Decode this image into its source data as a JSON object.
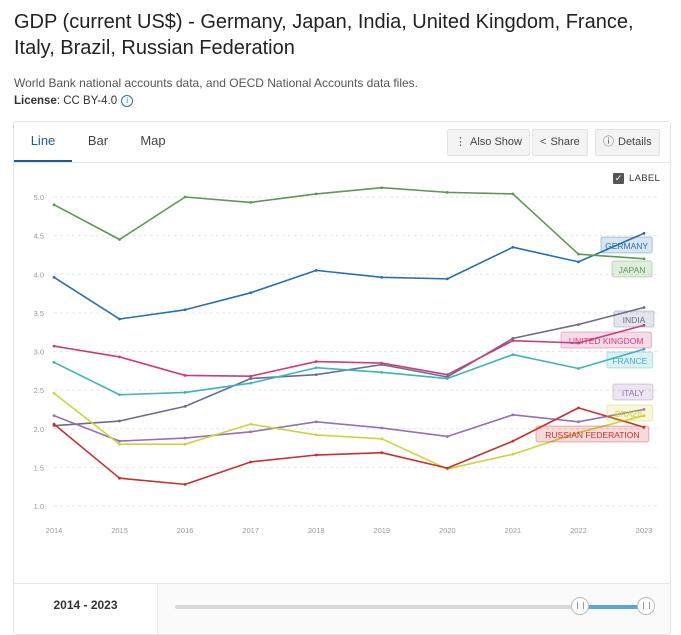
{
  "page": {
    "title": "GDP (current US$) - Germany, Japan, India, United Kingdom, France, Italy, Brazil, Russian Federation",
    "subtitle": "World Bank national accounts data, and OECD National Accounts data files.",
    "license_label": "License",
    "license_value": ": CC BY-4.0"
  },
  "tabs": [
    {
      "label": "Line"
    },
    {
      "label": "Bar"
    },
    {
      "label": "Map"
    }
  ],
  "toolbar": {
    "also_show": "Also Show",
    "share": "Share",
    "details": "Details",
    "label_toggle": "LABEL"
  },
  "range": {
    "label": "2014 - 2023",
    "start": 2014,
    "end": 2023
  },
  "colors": {
    "accent": "#1b5c96",
    "GERMANY": "#2a6fad",
    "JAPAN": "#5b9a4e",
    "INDIA": "#6b6d8e",
    "UNITED KINGDOM": "#cd3c7c",
    "FRANCE": "#3fb2bf",
    "ITALY": "#9470b8",
    "BRAZIL": "#cfd23a",
    "RUSSIAN FEDERATION": "#c8302e"
  },
  "chart_data": {
    "type": "line",
    "title": "",
    "xlabel": "",
    "ylabel": "",
    "x": [
      2014,
      2015,
      2016,
      2017,
      2018,
      2019,
      2020,
      2021,
      2022,
      2023
    ],
    "yticks": [
      "1.0",
      "1.5",
      "2.0",
      "2.5",
      "3.0",
      "3.5",
      "4.0",
      "4.5",
      "5.0"
    ],
    "ylim": [
      1.0,
      5.0
    ],
    "grid": true,
    "series": [
      {
        "name": "GERMANY",
        "values": [
          3.96,
          3.42,
          3.54,
          3.76,
          4.05,
          3.96,
          3.94,
          4.35,
          4.16,
          4.53
        ]
      },
      {
        "name": "JAPAN",
        "values": [
          4.9,
          4.45,
          5.0,
          4.93,
          5.04,
          5.12,
          5.06,
          5.04,
          4.26,
          4.2
        ]
      },
      {
        "name": "INDIA",
        "values": [
          2.04,
          2.1,
          2.29,
          2.65,
          2.7,
          2.83,
          2.67,
          3.17,
          3.35,
          3.57
        ]
      },
      {
        "name": "UNITED KINGDOM",
        "values": [
          3.07,
          2.93,
          2.69,
          2.68,
          2.87,
          2.85,
          2.7,
          3.14,
          3.11,
          3.34
        ]
      },
      {
        "name": "FRANCE",
        "values": [
          2.86,
          2.44,
          2.47,
          2.59,
          2.79,
          2.73,
          2.65,
          2.96,
          2.78,
          3.03
        ]
      },
      {
        "name": "ITALY",
        "values": [
          2.17,
          1.84,
          1.88,
          1.96,
          2.09,
          2.01,
          1.9,
          2.18,
          2.09,
          2.25
        ]
      },
      {
        "name": "BRAZIL",
        "values": [
          2.46,
          1.8,
          1.8,
          2.06,
          1.92,
          1.87,
          1.48,
          1.67,
          1.95,
          2.17
        ]
      },
      {
        "name": "RUSSIAN FEDERATION",
        "values": [
          2.06,
          1.36,
          1.28,
          1.57,
          1.66,
          1.69,
          1.49,
          1.84,
          2.27,
          2.02
        ]
      }
    ],
    "labels": [
      {
        "series": "GERMANY",
        "text": "GERMANY"
      },
      {
        "series": "JAPAN",
        "text": "JAPAN"
      },
      {
        "series": "INDIA",
        "text": "INDIA"
      },
      {
        "series": "UNITED KINGDOM",
        "text": "UNITED KINGDOM"
      },
      {
        "series": "FRANCE",
        "text": "FRANCE"
      },
      {
        "series": "ITALY",
        "text": "ITALY"
      },
      {
        "series": "BRAZIL",
        "text": "BRAZIL"
      },
      {
        "series": "RUSSIAN FEDERATION",
        "text": "RUSSIAN FEDERATION"
      }
    ]
  }
}
